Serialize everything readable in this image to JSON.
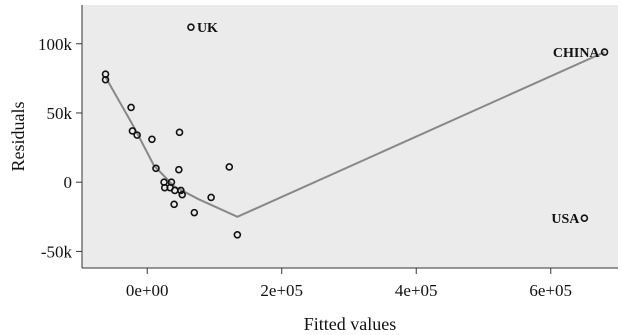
{
  "chart_data": {
    "type": "scatter",
    "xlabel": "Fitted values",
    "ylabel": "Residuals",
    "xlim": [
      -97000,
      700000
    ],
    "ylim": [
      -62000,
      128000
    ],
    "x_ticks": [
      {
        "value": 0,
        "label": "0e+00"
      },
      {
        "value": 200000,
        "label": "2e+05"
      },
      {
        "value": 400000,
        "label": "4e+05"
      },
      {
        "value": 600000,
        "label": "6e+05"
      }
    ],
    "y_ticks": [
      {
        "value": -50000,
        "label": "-50k"
      },
      {
        "value": 0,
        "label": "0"
      },
      {
        "value": 50000,
        "label": "50k"
      },
      {
        "value": 100000,
        "label": "100k"
      }
    ],
    "grid": false,
    "panel_background": "#ebebeb",
    "point_color": "#111111",
    "line_color": "#888888",
    "points": [
      {
        "x": -62000,
        "y": 78000
      },
      {
        "x": -62000,
        "y": 74000
      },
      {
        "x": -24000,
        "y": 54000
      },
      {
        "x": -22000,
        "y": 37000
      },
      {
        "x": -15000,
        "y": 34000
      },
      {
        "x": 7000,
        "y": 31000
      },
      {
        "x": 48000,
        "y": 36000
      },
      {
        "x": 13000,
        "y": 10000
      },
      {
        "x": 47000,
        "y": 9000
      },
      {
        "x": 122000,
        "y": 11000
      },
      {
        "x": 25000,
        "y": 0
      },
      {
        "x": 36000,
        "y": 0
      },
      {
        "x": 26000,
        "y": -4000
      },
      {
        "x": 34000,
        "y": -4000
      },
      {
        "x": 41000,
        "y": -6000
      },
      {
        "x": 50000,
        "y": -6000
      },
      {
        "x": 52000,
        "y": -9000
      },
      {
        "x": 40000,
        "y": -16000
      },
      {
        "x": 70000,
        "y": -22000
      },
      {
        "x": 95000,
        "y": -11000
      },
      {
        "x": 134000,
        "y": -38000
      },
      {
        "x": 65000,
        "y": 112000,
        "label": "UK"
      },
      {
        "x": 680000,
        "y": 94000,
        "label": "CHINA"
      },
      {
        "x": 650000,
        "y": -26000,
        "label": "USA"
      }
    ],
    "smooth_line": [
      {
        "x": -62000,
        "y": 76000
      },
      {
        "x": -20000,
        "y": 40000
      },
      {
        "x": 10000,
        "y": 12000
      },
      {
        "x": 40000,
        "y": -3000
      },
      {
        "x": 75000,
        "y": -12000
      },
      {
        "x": 134000,
        "y": -25000
      },
      {
        "x": 680000,
        "y": 94000
      }
    ]
  }
}
